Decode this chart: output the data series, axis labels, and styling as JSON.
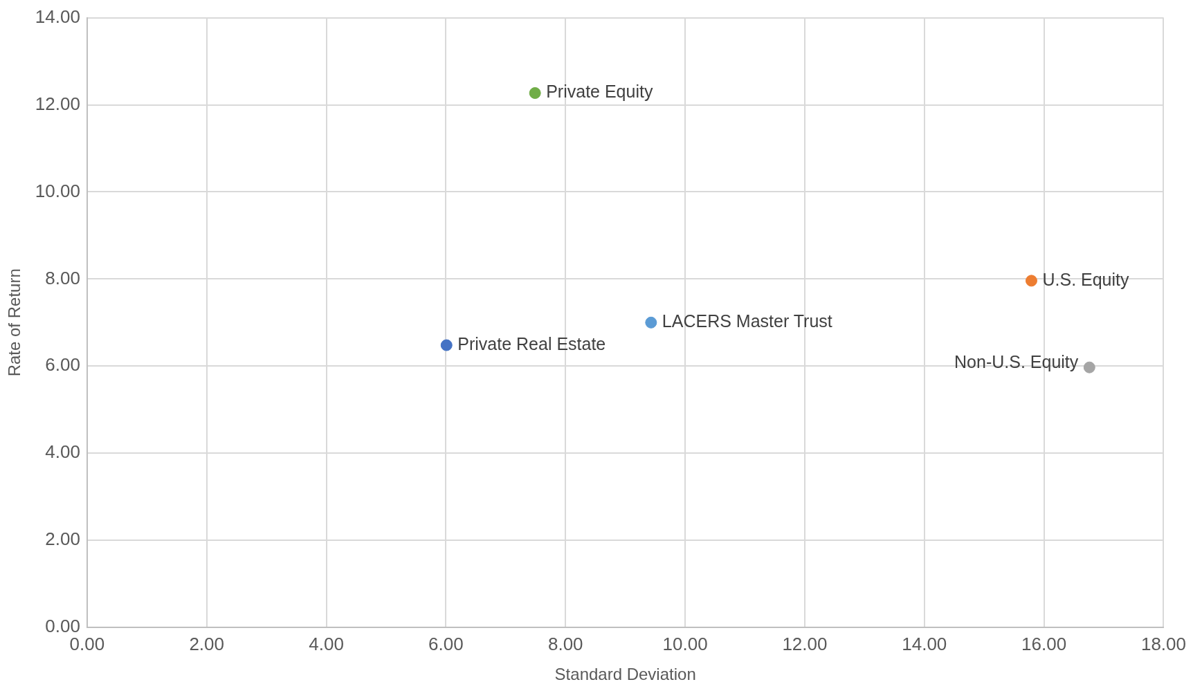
{
  "chart_data": {
    "type": "scatter",
    "xlabel": "Standard Deviation",
    "ylabel": "Rate of Return",
    "series": [
      {
        "name": "Private Equity",
        "color": "#70ad47",
        "x": [
          7.49
        ],
        "values": [
          12.27
        ]
      },
      {
        "name": "U.S. Equity",
        "color": "#ed7d31",
        "x": [
          15.79
        ],
        "values": [
          7.96
        ]
      },
      {
        "name": "LACERS Master Trust",
        "color": "#5b9bd5",
        "x": [
          9.43
        ],
        "values": [
          7.0
        ]
      },
      {
        "name": "Private Real Estate",
        "color": "#4472c4",
        "x": [
          6.01
        ],
        "values": [
          6.48
        ]
      },
      {
        "name": "Non-U.S. Equity",
        "color": "#a5a5a5",
        "x": [
          16.76
        ],
        "values": [
          5.97
        ]
      }
    ],
    "xlim": [
      0,
      18
    ],
    "ylim": [
      0,
      14
    ],
    "xticks": [
      {
        "value": 0,
        "label": "0.00"
      },
      {
        "value": 2,
        "label": "2.00"
      },
      {
        "value": 4,
        "label": "4.00"
      },
      {
        "value": 6,
        "label": "6.00"
      },
      {
        "value": 8,
        "label": "8.00"
      },
      {
        "value": 10,
        "label": "10.00"
      },
      {
        "value": 12,
        "label": "12.00"
      },
      {
        "value": 14,
        "label": "14.00"
      },
      {
        "value": 16,
        "label": "16.00"
      },
      {
        "value": 18,
        "label": "18.00"
      }
    ],
    "yticks": [
      {
        "value": 0,
        "label": "0.00"
      },
      {
        "value": 2,
        "label": "2.00"
      },
      {
        "value": 4,
        "label": "4.00"
      },
      {
        "value": 6,
        "label": "6.00"
      },
      {
        "value": 8,
        "label": "8.00"
      },
      {
        "value": 10,
        "label": "10.00"
      },
      {
        "value": 12,
        "label": "12.00"
      },
      {
        "value": 14,
        "label": "14.00"
      }
    ],
    "grid": true,
    "legend": false,
    "marker": "circle"
  }
}
